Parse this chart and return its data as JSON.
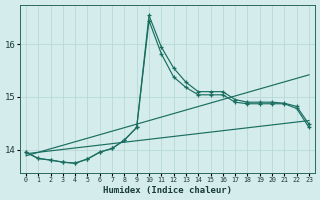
{
  "xlabel": "Humidex (Indice chaleur)",
  "background_color": "#d4ecec",
  "grid_color": "#b8d8d8",
  "line_color": "#1a6e60",
  "xlim": [
    -0.5,
    23.5
  ],
  "ylim": [
    13.55,
    16.75
  ],
  "yticks": [
    14,
    15,
    16
  ],
  "xticks": [
    0,
    1,
    2,
    3,
    4,
    5,
    6,
    7,
    8,
    9,
    10,
    11,
    12,
    13,
    14,
    15,
    16,
    17,
    18,
    19,
    20,
    21,
    22,
    23
  ],
  "trend1_x": [
    0,
    23
  ],
  "trend1_y": [
    13.88,
    15.42
  ],
  "trend2_x": [
    0,
    23
  ],
  "trend2_y": [
    13.92,
    14.55
  ],
  "peak1_x": [
    0,
    1,
    2,
    3,
    4,
    5,
    6,
    7,
    8,
    9,
    10,
    11,
    12,
    13,
    14,
    15,
    16,
    17,
    18,
    19,
    20,
    21,
    22,
    23
  ],
  "peak1_y": [
    13.95,
    13.83,
    13.8,
    13.76,
    13.74,
    13.82,
    13.95,
    14.02,
    14.18,
    14.42,
    16.45,
    15.82,
    15.38,
    15.18,
    15.04,
    15.04,
    15.04,
    14.9,
    14.87,
    14.87,
    14.87,
    14.87,
    14.78,
    14.42
  ],
  "peak2_x": [
    0,
    1,
    2,
    3,
    4,
    5,
    6,
    7,
    8,
    9,
    10,
    11,
    12,
    13,
    14,
    15,
    16,
    17,
    18,
    19,
    20,
    21,
    22,
    23
  ],
  "peak2_y": [
    13.95,
    13.83,
    13.8,
    13.76,
    13.74,
    13.82,
    13.95,
    14.02,
    14.18,
    14.42,
    16.55,
    15.95,
    15.55,
    15.28,
    15.1,
    15.1,
    15.1,
    14.95,
    14.9,
    14.9,
    14.9,
    14.88,
    14.82,
    14.48
  ]
}
